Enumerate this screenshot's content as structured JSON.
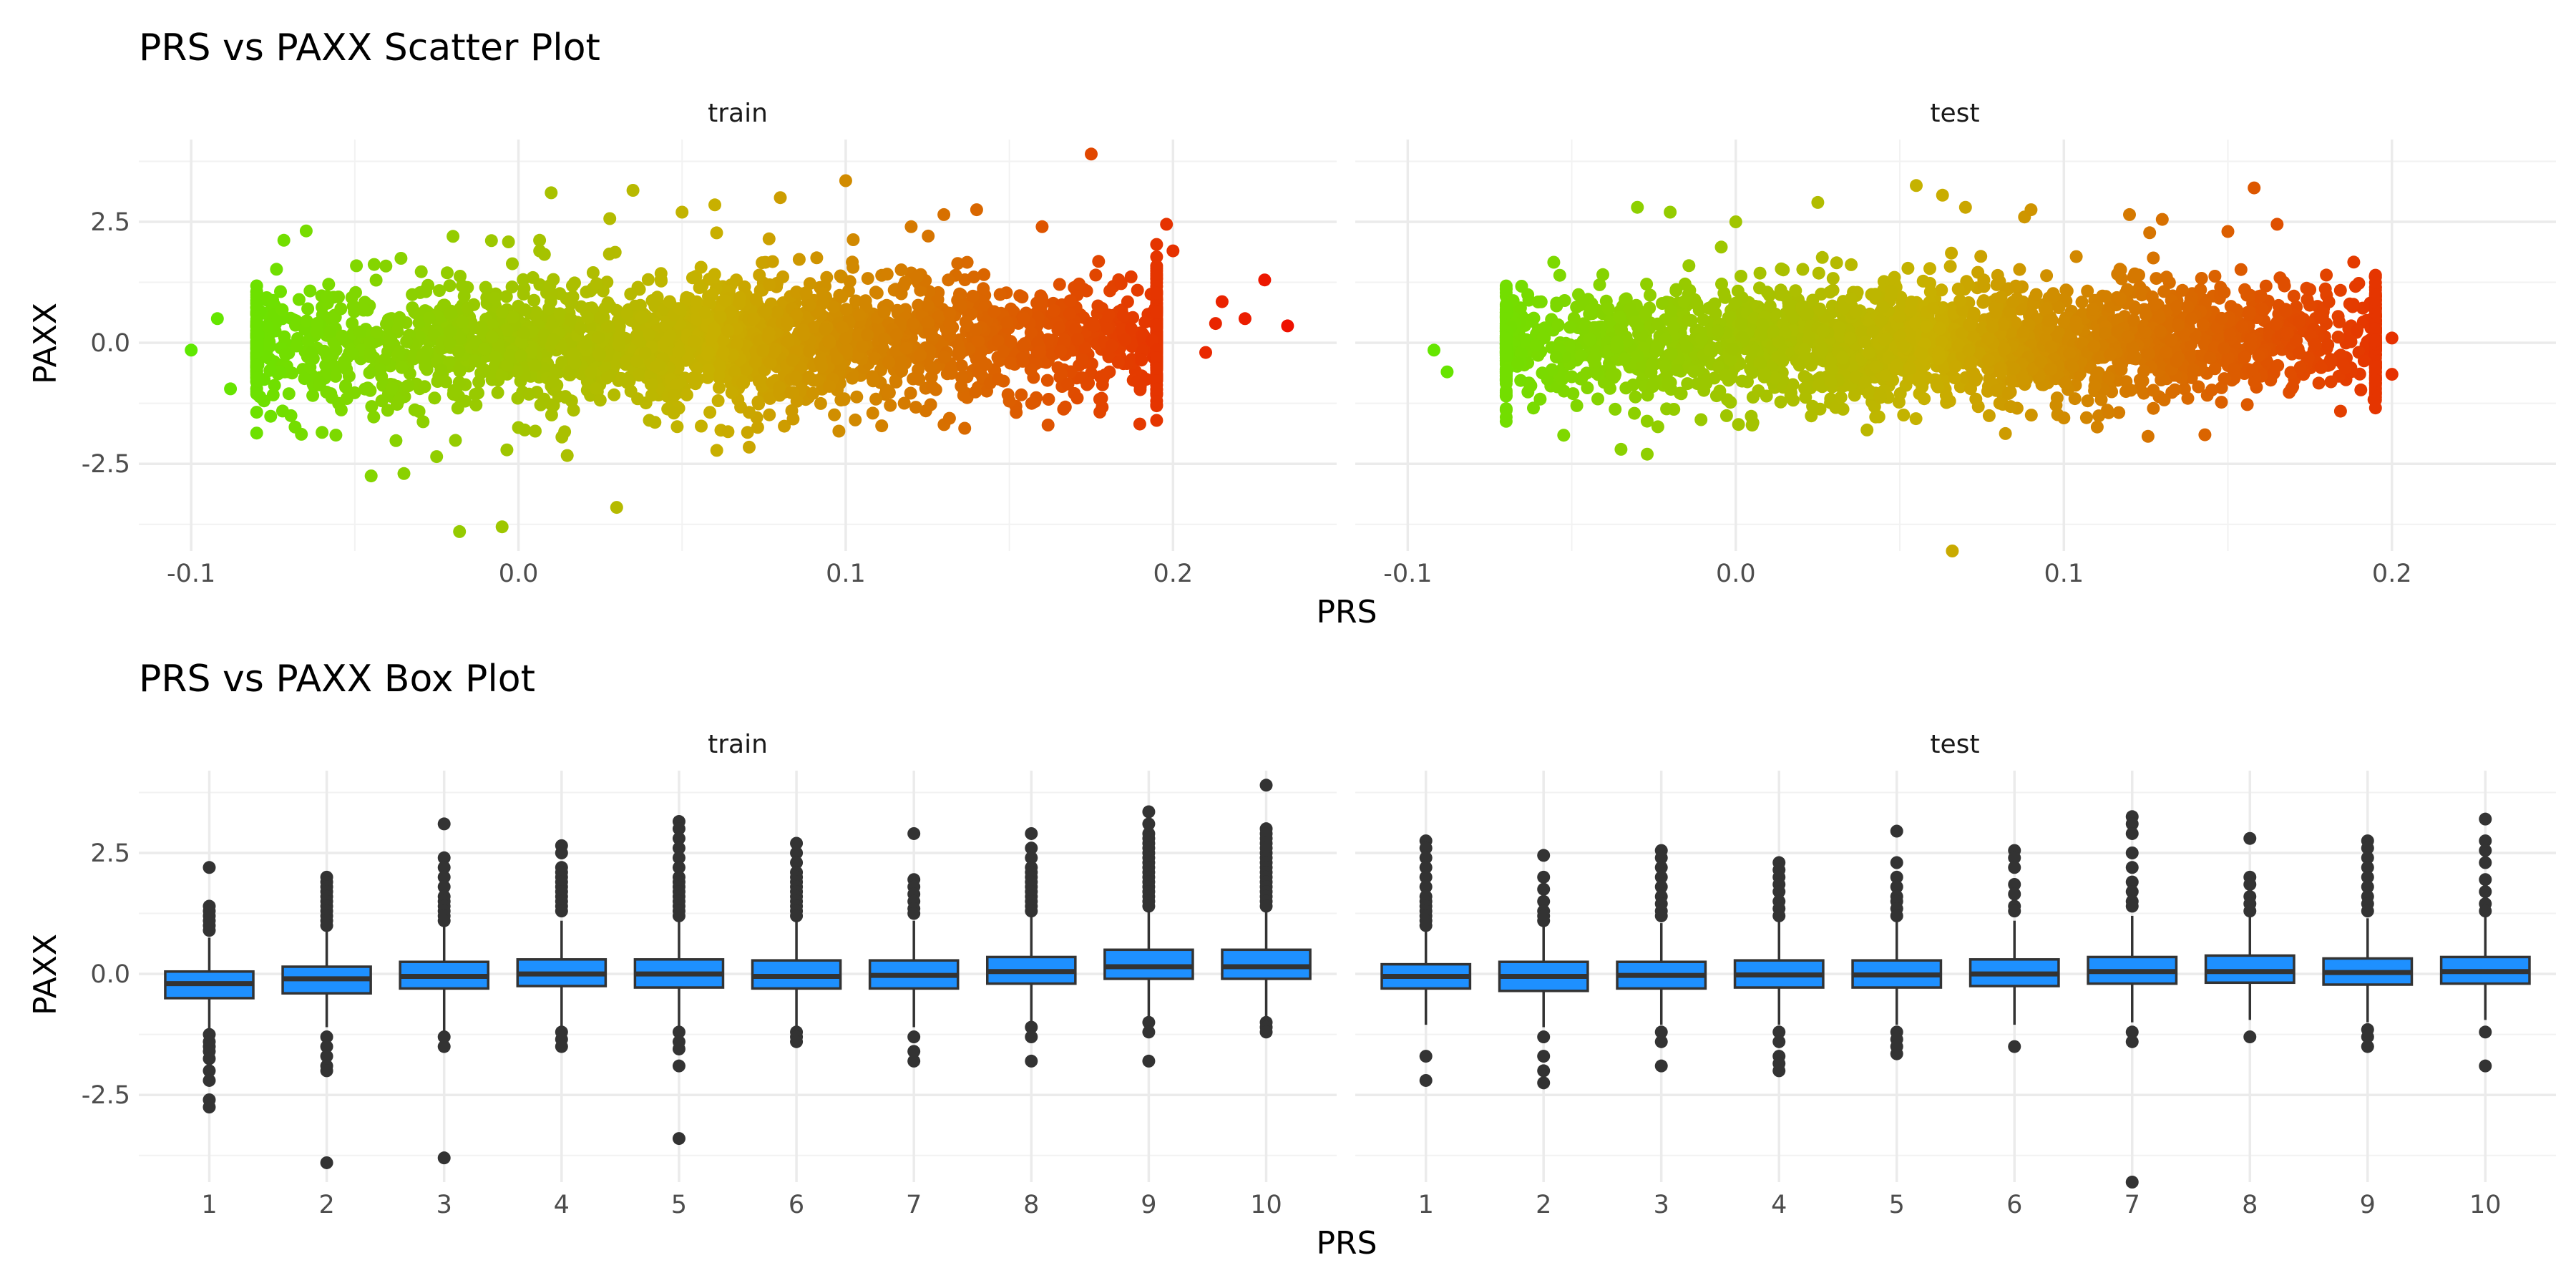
{
  "chart_data": [
    {
      "type": "scatter",
      "title": "PRS vs PAXX Scatter Plot",
      "xlabel": "PRS",
      "ylabel": "PAXX",
      "xlim": [
        -0.116,
        0.25
      ],
      "ylim": [
        -4.3,
        4.2
      ],
      "xticks": [
        "-0.1",
        "0.0",
        "0.1",
        "0.2"
      ],
      "xtick_values": [
        -0.1,
        0.0,
        0.1,
        0.2
      ],
      "yticks": [
        "2.5",
        "0.0",
        "-2.5"
      ],
      "ytick_values": [
        2.5,
        0.0,
        -2.5
      ],
      "grid": true,
      "color_gradient": {
        "low": "#55ee00",
        "mid": "#c8b000",
        "high": "#ee1100"
      },
      "panels": [
        {
          "name": "train",
          "bulk_x_range": [
            -0.07,
            0.19
          ],
          "bulk_y_sd": 0.5,
          "points": [
            [
              -0.1,
              -0.15
            ],
            [
              -0.092,
              0.5
            ],
            [
              -0.088,
              -0.95
            ],
            [
              -0.045,
              -2.75
            ],
            [
              -0.035,
              -2.7
            ],
            [
              -0.025,
              -2.35
            ],
            [
              -0.018,
              -3.9
            ],
            [
              -0.005,
              -3.8
            ],
            [
              0.01,
              3.1
            ],
            [
              0.03,
              -3.4
            ],
            [
              0.035,
              3.15
            ],
            [
              0.08,
              3.0
            ],
            [
              0.1,
              3.35
            ],
            [
              0.175,
              3.9
            ],
            [
              0.198,
              2.45
            ],
            [
              0.215,
              0.85
            ],
            [
              0.222,
              0.5
            ],
            [
              0.228,
              1.3
            ],
            [
              0.235,
              0.35
            ],
            [
              0.213,
              0.4
            ],
            [
              -0.02,
              2.2
            ],
            [
              0.06,
              2.85
            ],
            [
              0.14,
              2.75
            ],
            [
              0.13,
              2.65
            ],
            [
              0.16,
              2.4
            ],
            [
              -0.06,
              -1.85
            ],
            [
              0.07,
              -1.85
            ],
            [
              0.0,
              -1.75
            ],
            [
              -0.08,
              0.8
            ],
            [
              0.2,
              1.9
            ],
            [
              0.19,
              -0.9
            ],
            [
              0.21,
              -0.2
            ],
            [
              0.12,
              2.4
            ],
            [
              0.05,
              2.7
            ],
            [
              0.04,
              -1.6
            ]
          ]
        },
        {
          "name": "test",
          "bulk_x_range": [
            -0.06,
            0.19
          ],
          "bulk_y_sd": 0.45,
          "points": [
            [
              -0.092,
              -0.15
            ],
            [
              -0.088,
              -0.6
            ],
            [
              -0.07,
              -0.1
            ],
            [
              -0.03,
              2.8
            ],
            [
              -0.02,
              2.7
            ],
            [
              -0.035,
              -2.2
            ],
            [
              -0.027,
              -2.3
            ],
            [
              0.0,
              2.5
            ],
            [
              0.025,
              2.9
            ],
            [
              0.055,
              3.25
            ],
            [
              0.063,
              3.05
            ],
            [
              0.066,
              -4.3
            ],
            [
              0.12,
              2.65
            ],
            [
              0.158,
              3.2
            ],
            [
              0.15,
              2.3
            ],
            [
              0.165,
              2.45
            ],
            [
              0.143,
              -1.9
            ],
            [
              0.195,
              -0.5
            ],
            [
              0.2,
              -0.65
            ],
            [
              0.2,
              0.1
            ],
            [
              0.18,
              1.4
            ],
            [
              0.13,
              2.55
            ],
            [
              0.088,
              2.6
            ],
            [
              0.1,
              -1.55
            ],
            [
              0.04,
              -1.8
            ],
            [
              -0.05,
              -0.7
            ],
            [
              0.09,
              2.75
            ],
            [
              0.07,
              2.8
            ],
            [
              0.005,
              -1.7
            ],
            [
              0.175,
              1.1
            ]
          ]
        }
      ]
    },
    {
      "type": "box",
      "title": "PRS vs PAXX Box Plot",
      "xlabel": "PRS",
      "ylabel": "PAXX",
      "categories": [
        "1",
        "2",
        "3",
        "4",
        "5",
        "6",
        "7",
        "8",
        "9",
        "10"
      ],
      "ylim": [
        -4.3,
        4.2
      ],
      "yticks": [
        "2.5",
        "0.0",
        "-2.5"
      ],
      "ytick_values": [
        2.5,
        0.0,
        -2.5
      ],
      "grid": true,
      "box_fill": "#1e90ff",
      "box_line": "#333333",
      "panels": [
        {
          "name": "train",
          "boxes": [
            {
              "q1": -0.5,
              "median": -0.2,
              "q3": 0.05,
              "whisker_low": -1.2,
              "whisker_high": 0.75,
              "outliers": [
                2.2,
                1.4,
                1.3,
                1.2,
                1.1,
                1.0,
                0.9,
                -1.25,
                -1.4,
                -1.5,
                -1.6,
                -1.75,
                -2.0,
                -2.2,
                -2.6,
                -2.75
              ]
            },
            {
              "q1": -0.4,
              "median": -0.1,
              "q3": 0.15,
              "whisker_low": -1.1,
              "whisker_high": 0.9,
              "outliers": [
                2.0,
                1.9,
                1.8,
                1.7,
                1.6,
                1.5,
                1.4,
                1.3,
                1.2,
                1.1,
                1.0,
                -1.3,
                -1.5,
                -1.7,
                -1.9,
                -2.0,
                -3.9
              ]
            },
            {
              "q1": -0.3,
              "median": -0.05,
              "q3": 0.25,
              "whisker_low": -1.2,
              "whisker_high": 1.05,
              "outliers": [
                3.1,
                2.4,
                2.2,
                2.0,
                1.8,
                1.6,
                1.5,
                1.4,
                1.3,
                1.2,
                1.1,
                -1.3,
                -1.5,
                -3.8
              ]
            },
            {
              "q1": -0.25,
              "median": 0.0,
              "q3": 0.3,
              "whisker_low": -1.1,
              "whisker_high": 1.1,
              "outliers": [
                2.65,
                2.5,
                2.2,
                2.1,
                2.0,
                1.9,
                1.8,
                1.7,
                1.6,
                1.5,
                1.4,
                1.3,
                -1.2,
                -1.35,
                -1.5
              ]
            },
            {
              "q1": -0.28,
              "median": 0.0,
              "q3": 0.3,
              "whisker_low": -1.1,
              "whisker_high": 1.15,
              "outliers": [
                3.15,
                3.0,
                2.8,
                2.6,
                2.4,
                2.2,
                2.0,
                1.9,
                1.8,
                1.7,
                1.6,
                1.5,
                1.4,
                1.3,
                1.2,
                -1.2,
                -1.4,
                -1.55,
                -1.9,
                -3.4
              ]
            },
            {
              "q1": -0.3,
              "median": -0.05,
              "q3": 0.28,
              "whisker_low": -1.1,
              "whisker_high": 1.1,
              "outliers": [
                2.7,
                2.5,
                2.3,
                2.1,
                2.0,
                1.9,
                1.8,
                1.7,
                1.6,
                1.5,
                1.4,
                1.3,
                1.2,
                -1.2,
                -1.3,
                -1.4
              ]
            },
            {
              "q1": -0.3,
              "median": -0.03,
              "q3": 0.28,
              "whisker_low": -1.1,
              "whisker_high": 1.1,
              "outliers": [
                2.9,
                1.95,
                1.8,
                1.65,
                1.5,
                1.35,
                1.25,
                -1.3,
                -1.6,
                -1.8
              ]
            },
            {
              "q1": -0.2,
              "median": 0.05,
              "q3": 0.35,
              "whisker_low": -1.0,
              "whisker_high": 1.2,
              "outliers": [
                2.9,
                2.6,
                2.4,
                2.2,
                2.1,
                2.0,
                1.9,
                1.8,
                1.7,
                1.6,
                1.5,
                1.4,
                1.3,
                -1.1,
                -1.3,
                -1.8
              ]
            },
            {
              "q1": -0.1,
              "median": 0.15,
              "q3": 0.5,
              "whisker_low": -0.95,
              "whisker_high": 1.35,
              "outliers": [
                3.35,
                3.1,
                2.9,
                2.8,
                2.7,
                2.6,
                2.5,
                2.4,
                2.3,
                2.2,
                2.1,
                2.0,
                1.9,
                1.8,
                1.7,
                1.6,
                1.5,
                1.4,
                -1.0,
                -1.2,
                -1.8
              ]
            },
            {
              "q1": -0.1,
              "median": 0.15,
              "q3": 0.5,
              "whisker_low": -0.95,
              "whisker_high": 1.35,
              "outliers": [
                3.9,
                3.0,
                2.9,
                2.8,
                2.7,
                2.6,
                2.5,
                2.4,
                2.3,
                2.2,
                2.1,
                2.0,
                1.9,
                1.8,
                1.7,
                1.6,
                1.5,
                1.4,
                -1.0,
                -1.1,
                -1.2
              ]
            }
          ]
        },
        {
          "name": "test",
          "boxes": [
            {
              "q1": -0.3,
              "median": -0.05,
              "q3": 0.2,
              "whisker_low": -1.05,
              "whisker_high": 0.95,
              "outliers": [
                2.75,
                2.6,
                2.4,
                2.2,
                2.0,
                1.8,
                1.6,
                1.5,
                1.4,
                1.3,
                1.2,
                1.1,
                1.0,
                -1.7,
                -2.2
              ]
            },
            {
              "q1": -0.35,
              "median": -0.05,
              "q3": 0.25,
              "whisker_low": -1.1,
              "whisker_high": 1.0,
              "outliers": [
                2.45,
                2.0,
                1.75,
                1.5,
                1.3,
                1.2,
                1.1,
                -1.3,
                -1.7,
                -2.0,
                -2.25
              ]
            },
            {
              "q1": -0.3,
              "median": -0.03,
              "q3": 0.25,
              "whisker_low": -1.05,
              "whisker_high": 1.05,
              "outliers": [
                2.55,
                2.4,
                2.2,
                2.0,
                1.8,
                1.6,
                1.45,
                1.3,
                1.2,
                -1.2,
                -1.4,
                -1.9
              ]
            },
            {
              "q1": -0.28,
              "median": -0.02,
              "q3": 0.28,
              "whisker_low": -1.05,
              "whisker_high": 1.1,
              "outliers": [
                2.3,
                2.15,
                2.0,
                1.85,
                1.7,
                1.5,
                1.35,
                1.2,
                -1.2,
                -1.4,
                -1.7,
                -1.85,
                -2.0
              ]
            },
            {
              "q1": -0.28,
              "median": -0.02,
              "q3": 0.28,
              "whisker_low": -1.05,
              "whisker_high": 1.1,
              "outliers": [
                2.95,
                2.3,
                2.0,
                1.8,
                1.6,
                1.5,
                1.35,
                1.2,
                -1.2,
                -1.35,
                -1.5,
                -1.65
              ]
            },
            {
              "q1": -0.25,
              "median": 0.0,
              "q3": 0.3,
              "whisker_low": -1.05,
              "whisker_high": 1.1,
              "outliers": [
                2.55,
                2.4,
                2.2,
                1.85,
                1.65,
                1.4,
                1.3,
                -1.5
              ]
            },
            {
              "q1": -0.2,
              "median": 0.05,
              "q3": 0.35,
              "whisker_low": -1.0,
              "whisker_high": 1.2,
              "outliers": [
                3.25,
                3.1,
                2.9,
                2.5,
                2.2,
                1.9,
                1.7,
                1.5,
                1.4,
                -1.2,
                -1.4,
                -4.3
              ]
            },
            {
              "q1": -0.18,
              "median": 0.05,
              "q3": 0.38,
              "whisker_low": -0.95,
              "whisker_high": 1.2,
              "outliers": [
                2.8,
                2.0,
                1.85,
                1.6,
                1.45,
                1.3,
                -1.3
              ]
            },
            {
              "q1": -0.22,
              "median": 0.03,
              "q3": 0.32,
              "whisker_low": -1.0,
              "whisker_high": 1.15,
              "outliers": [
                2.75,
                2.6,
                2.4,
                2.2,
                2.0,
                1.8,
                1.6,
                1.45,
                1.3,
                -1.15,
                -1.3,
                -1.5
              ]
            },
            {
              "q1": -0.2,
              "median": 0.05,
              "q3": 0.35,
              "whisker_low": -0.95,
              "whisker_high": 1.2,
              "outliers": [
                3.2,
                2.75,
                2.55,
                2.3,
                1.95,
                1.7,
                1.45,
                1.3,
                -1.2,
                -1.9
              ]
            }
          ]
        }
      ]
    }
  ]
}
